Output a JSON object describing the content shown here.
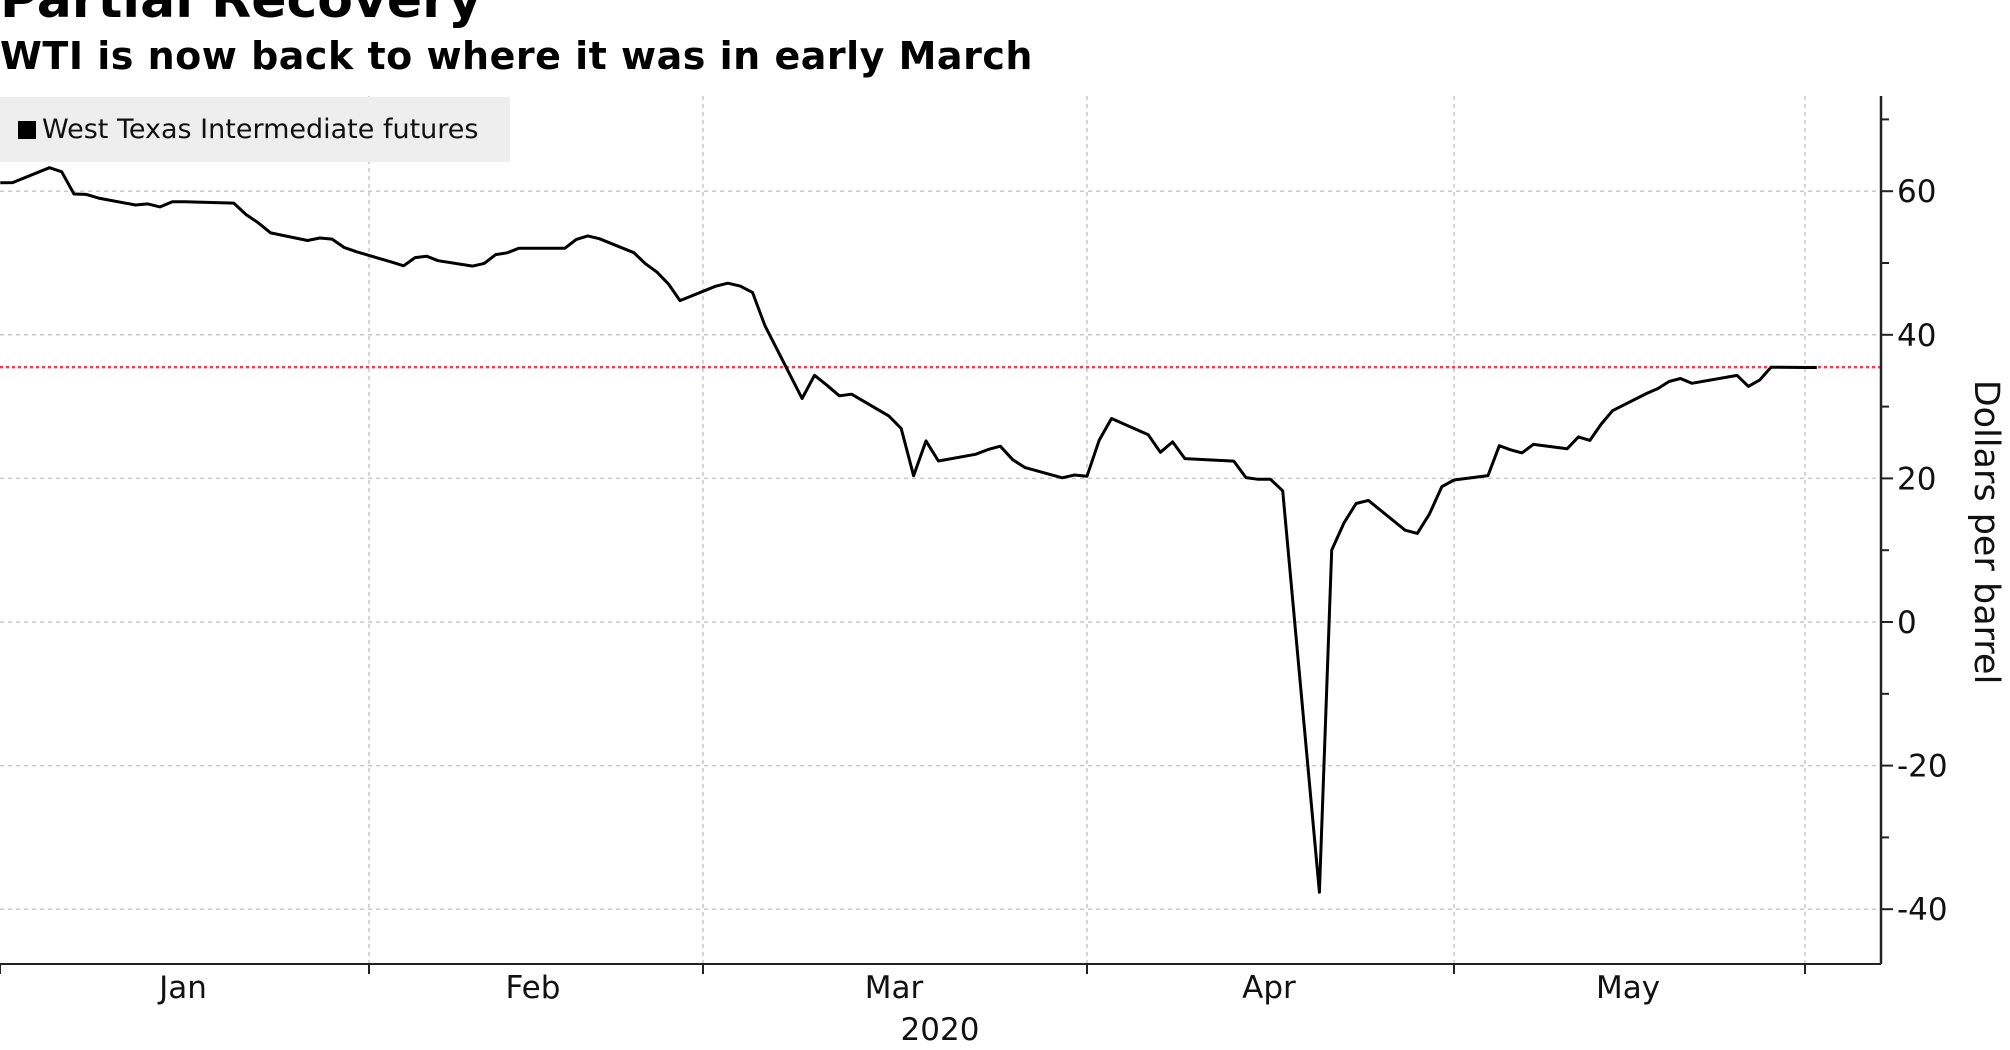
{
  "chart_data": {
    "type": "line",
    "title": "Partial Recovery",
    "subtitle": "WTI is now back to where it was in early March",
    "ylabel": "Dollars per barrel",
    "xlabel": "2020",
    "ylim": [
      -45,
      73
    ],
    "yticks": [
      60,
      40,
      20,
      0,
      -20,
      -40
    ],
    "ytick_labels": [
      "60",
      "40",
      "20",
      "0",
      "-20",
      "-40"
    ],
    "xtick_labels": [
      "Jan",
      "Feb",
      "Mar",
      "Apr",
      "May"
    ],
    "grid": true,
    "legend_position": "top-left",
    "y_axis_side": "right",
    "reference_line": {
      "value": 35.5,
      "color": "#e0455a"
    },
    "series": [
      {
        "name": "West Texas Intermediate futures",
        "color": "#000000",
        "x": [
          "2020-01-02",
          "2020-01-03",
          "2020-01-06",
          "2020-01-07",
          "2020-01-08",
          "2020-01-09",
          "2020-01-10",
          "2020-01-13",
          "2020-01-14",
          "2020-01-15",
          "2020-01-16",
          "2020-01-17",
          "2020-01-21",
          "2020-01-22",
          "2020-01-23",
          "2020-01-24",
          "2020-01-27",
          "2020-01-28",
          "2020-01-29",
          "2020-01-30",
          "2020-01-31",
          "2020-02-03",
          "2020-02-04",
          "2020-02-05",
          "2020-02-06",
          "2020-02-07",
          "2020-02-10",
          "2020-02-11",
          "2020-02-12",
          "2020-02-13",
          "2020-02-14",
          "2020-02-18",
          "2020-02-19",
          "2020-02-20",
          "2020-02-21",
          "2020-02-24",
          "2020-02-25",
          "2020-02-26",
          "2020-02-27",
          "2020-02-28",
          "2020-03-02",
          "2020-03-03",
          "2020-03-04",
          "2020-03-05",
          "2020-03-06",
          "2020-03-09",
          "2020-03-10",
          "2020-03-11",
          "2020-03-12",
          "2020-03-13",
          "2020-03-16",
          "2020-03-17",
          "2020-03-18",
          "2020-03-19",
          "2020-03-20",
          "2020-03-23",
          "2020-03-24",
          "2020-03-25",
          "2020-03-26",
          "2020-03-27",
          "2020-03-30",
          "2020-03-31",
          "2020-04-01",
          "2020-04-02",
          "2020-04-03",
          "2020-04-06",
          "2020-04-07",
          "2020-04-08",
          "2020-04-09",
          "2020-04-13",
          "2020-04-14",
          "2020-04-15",
          "2020-04-16",
          "2020-04-17",
          "2020-04-20",
          "2020-04-21",
          "2020-04-22",
          "2020-04-23",
          "2020-04-24",
          "2020-04-27",
          "2020-04-28",
          "2020-04-29",
          "2020-04-30",
          "2020-05-01",
          "2020-05-04",
          "2020-05-05",
          "2020-05-06",
          "2020-05-07",
          "2020-05-08",
          "2020-05-11",
          "2020-05-12",
          "2020-05-13",
          "2020-05-14",
          "2020-05-15",
          "2020-05-18",
          "2020-05-19",
          "2020-05-20",
          "2020-05-21",
          "2020-05-22",
          "2020-05-26",
          "2020-05-27",
          "2020-05-28",
          "2020-05-29",
          "2020-06-01",
          "2020-06-02"
        ],
        "values": [
          61.18,
          61.2,
          63.27,
          62.7,
          59.61,
          59.56,
          59.04,
          58.08,
          58.23,
          57.81,
          58.52,
          58.54,
          58.34,
          56.74,
          55.59,
          54.19,
          53.14,
          53.48,
          53.33,
          52.14,
          51.56,
          50.11,
          49.61,
          50.75,
          50.95,
          50.32,
          49.57,
          49.94,
          51.17,
          51.42,
          52.05,
          52.05,
          53.29,
          53.78,
          53.38,
          51.43,
          49.9,
          48.73,
          47.09,
          44.76,
          46.75,
          47.18,
          46.78,
          45.9,
          41.28,
          31.13,
          34.36,
          32.98,
          31.5,
          31.73,
          28.7,
          26.95,
          20.37,
          25.22,
          22.43,
          23.36,
          24.01,
          24.49,
          22.6,
          21.51,
          20.09,
          20.48,
          20.31,
          25.32,
          28.34,
          26.08,
          23.63,
          25.09,
          22.76,
          22.41,
          20.11,
          19.87,
          19.87,
          18.27,
          -37.63,
          10.01,
          13.78,
          16.5,
          16.94,
          12.78,
          12.34,
          15.06,
          18.84,
          19.78,
          20.39,
          24.56,
          23.99,
          23.55,
          24.74,
          24.14,
          25.78,
          25.29,
          27.56,
          29.43,
          31.82,
          32.5,
          33.49,
          33.92,
          33.25,
          34.35,
          32.81,
          33.71,
          35.49,
          35.44,
          35.44
        ]
      }
    ]
  }
}
